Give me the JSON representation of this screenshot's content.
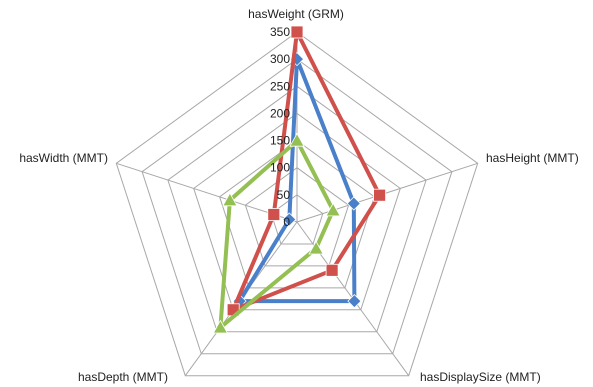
{
  "chart_data": {
    "type": "radar",
    "title": "",
    "axes": [
      "hasWeight (GRM)",
      "hasHeight  (MMT)",
      "hasDisplaySize (MMT)",
      "hasDepth (MMT)",
      "hasWidth (MMT)"
    ],
    "r_range": [
      0,
      350
    ],
    "r_ticks": [
      0,
      50,
      100,
      150,
      200,
      250,
      300,
      350
    ],
    "r_tick_labels": [
      "0",
      "50",
      "100",
      "150",
      "200",
      "250",
      "300",
      "350"
    ],
    "grid": true,
    "legend": "none",
    "series": [
      {
        "color": "#4a7fc9",
        "marker": "diamond",
        "values": [
          300,
          110,
          180,
          180,
          15
        ]
      },
      {
        "color": "#d0504c",
        "marker": "square",
        "values": [
          350,
          160,
          110,
          200,
          45
        ]
      },
      {
        "color": "#94bf52",
        "marker": "triangle",
        "values": [
          150,
          70,
          60,
          240,
          130
        ]
      }
    ]
  }
}
